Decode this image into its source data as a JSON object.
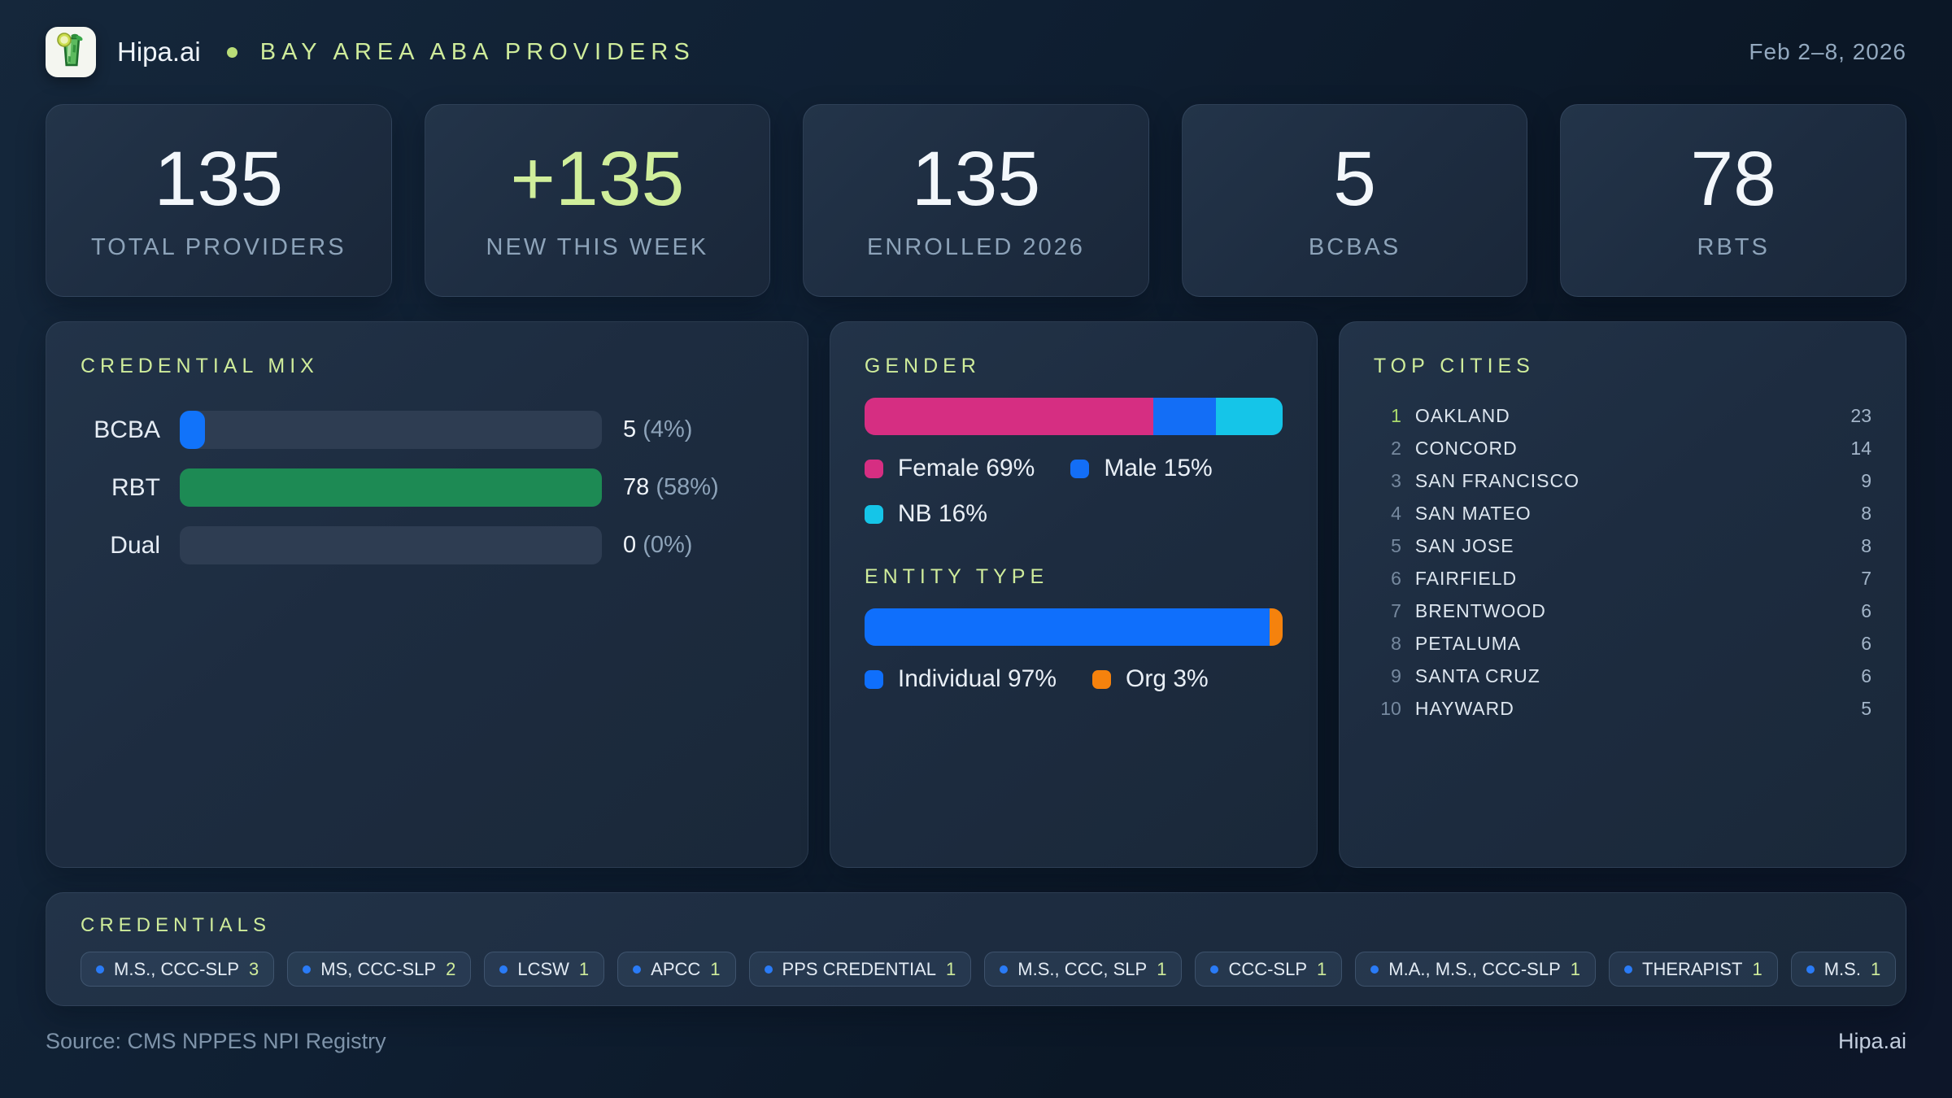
{
  "header": {
    "brand": "Hipa.ai",
    "title": "BAY AREA ABA PROVIDERS",
    "date_range": "Feb 2–8, 2026"
  },
  "colors": {
    "accent_green": "#cfec9b",
    "bcba_blue": "#1173fa",
    "rbt_green": "#1d8a54",
    "female_pink": "#d62e82",
    "male_blue": "#136ef6",
    "nb_cyan": "#15c5e8",
    "individual_blue": "#0f6ffc",
    "org_orange": "#f5820d",
    "badge_dot_blue": "#2a7bf6"
  },
  "stats": [
    {
      "value": "135",
      "label": "TOTAL PROVIDERS",
      "highlight": false
    },
    {
      "value": "+135",
      "label": "NEW THIS WEEK",
      "highlight": true
    },
    {
      "value": "135",
      "label": "ENROLLED 2026",
      "highlight": false
    },
    {
      "value": "5",
      "label": "BCBAS",
      "highlight": false
    },
    {
      "value": "78",
      "label": "RBTS",
      "highlight": false
    }
  ],
  "credential_mix": {
    "title": "CREDENTIAL MIX",
    "rows": [
      {
        "label": "BCBA",
        "count": "5",
        "pct": "(4%)",
        "fill": 6,
        "color": "#1173fa"
      },
      {
        "label": "RBT",
        "count": "78",
        "pct": "(58%)",
        "fill": 100,
        "color": "#1d8a54"
      },
      {
        "label": "Dual",
        "count": "0",
        "pct": "(0%)",
        "fill": 0,
        "color": "#1173fa"
      }
    ]
  },
  "gender": {
    "title": "GENDER",
    "segments": [
      {
        "name": "Female",
        "pct": 69,
        "color": "#d62e82"
      },
      {
        "name": "Male",
        "pct": 15,
        "color": "#136ef6"
      },
      {
        "name": "NB",
        "pct": 16,
        "color": "#15c5e8"
      }
    ],
    "legend": [
      {
        "label": "Female 69%",
        "color": "#d62e82"
      },
      {
        "label": "Male 15%",
        "color": "#136ef6"
      },
      {
        "label": "NB 16%",
        "color": "#15c5e8"
      }
    ]
  },
  "entity": {
    "title": "ENTITY TYPE",
    "segments": [
      {
        "name": "Individual",
        "pct": 97,
        "color": "#0f6ffc"
      },
      {
        "name": "Org",
        "pct": 3,
        "color": "#f5820d"
      }
    ],
    "legend": [
      {
        "label": "Individual 97%",
        "color": "#0f6ffc"
      },
      {
        "label": "Org 3%",
        "color": "#f5820d"
      }
    ]
  },
  "top_cities": {
    "title": "TOP CITIES",
    "rows": [
      {
        "rank": "1",
        "name": "OAKLAND",
        "count": "23"
      },
      {
        "rank": "2",
        "name": "CONCORD",
        "count": "14"
      },
      {
        "rank": "3",
        "name": "SAN FRANCISCO",
        "count": "9"
      },
      {
        "rank": "4",
        "name": "SAN MATEO",
        "count": "8"
      },
      {
        "rank": "5",
        "name": "SAN JOSE",
        "count": "8"
      },
      {
        "rank": "6",
        "name": "FAIRFIELD",
        "count": "7"
      },
      {
        "rank": "7",
        "name": "BRENTWOOD",
        "count": "6"
      },
      {
        "rank": "8",
        "name": "PETALUMA",
        "count": "6"
      },
      {
        "rank": "9",
        "name": "SANTA CRUZ",
        "count": "6"
      },
      {
        "rank": "10",
        "name": "HAYWARD",
        "count": "5"
      }
    ]
  },
  "credentials": {
    "title": "CREDENTIALS",
    "badges": [
      {
        "label": "M.S., CCC-SLP",
        "count": "3"
      },
      {
        "label": "MS, CCC-SLP",
        "count": "2"
      },
      {
        "label": "LCSW",
        "count": "1"
      },
      {
        "label": "APCC",
        "count": "1"
      },
      {
        "label": "PPS CREDENTIAL",
        "count": "1"
      },
      {
        "label": "M.S., CCC, SLP",
        "count": "1"
      },
      {
        "label": "CCC-SLP",
        "count": "1"
      },
      {
        "label": "M.A., M.S., CCC-SLP",
        "count": "1"
      },
      {
        "label": "THERAPIST",
        "count": "1"
      },
      {
        "label": "M.S.",
        "count": "1"
      }
    ]
  },
  "footer": {
    "source": "Source: CMS NPPES NPI Registry",
    "brand": "Hipa.ai"
  },
  "chart_data": [
    {
      "type": "table",
      "title": "SUMMARY STATS",
      "categories": [
        "TOTAL PROVIDERS",
        "NEW THIS WEEK",
        "ENROLLED 2026",
        "BCBAS",
        "RBTS"
      ],
      "values": [
        135,
        135,
        135,
        5,
        78
      ]
    },
    {
      "type": "bar",
      "orientation": "horizontal",
      "title": "CREDENTIAL MIX",
      "categories": [
        "BCBA",
        "RBT",
        "Dual"
      ],
      "values": [
        5,
        78,
        0
      ],
      "percent_of_total": [
        4,
        58,
        0
      ],
      "bar_colors": [
        "#1173fa",
        "#1d8a54",
        "#1173fa"
      ],
      "xlabel": "",
      "ylabel": "",
      "grid": false
    },
    {
      "type": "bar",
      "stacked": true,
      "title": "GENDER",
      "categories": [
        "Female",
        "Male",
        "NB"
      ],
      "values": [
        69,
        15,
        16
      ],
      "unit": "%",
      "bar_colors": [
        "#d62e82",
        "#136ef6",
        "#15c5e8"
      ],
      "legend_position": "below"
    },
    {
      "type": "bar",
      "stacked": true,
      "title": "ENTITY TYPE",
      "categories": [
        "Individual",
        "Org"
      ],
      "values": [
        97,
        3
      ],
      "unit": "%",
      "bar_colors": [
        "#0f6ffc",
        "#f5820d"
      ],
      "legend_position": "below"
    },
    {
      "type": "table",
      "title": "TOP CITIES",
      "categories": [
        "OAKLAND",
        "CONCORD",
        "SAN FRANCISCO",
        "SAN MATEO",
        "SAN JOSE",
        "FAIRFIELD",
        "BRENTWOOD",
        "PETALUMA",
        "SANTA CRUZ",
        "HAYWARD"
      ],
      "values": [
        23,
        14,
        9,
        8,
        8,
        7,
        6,
        6,
        6,
        5
      ]
    },
    {
      "type": "table",
      "title": "CREDENTIALS",
      "categories": [
        "M.S., CCC-SLP",
        "MS, CCC-SLP",
        "LCSW",
        "APCC",
        "PPS CREDENTIAL",
        "M.S., CCC, SLP",
        "CCC-SLP",
        "M.A., M.S., CCC-SLP",
        "THERAPIST",
        "M.S."
      ],
      "values": [
        3,
        2,
        1,
        1,
        1,
        1,
        1,
        1,
        1,
        1
      ]
    }
  ]
}
